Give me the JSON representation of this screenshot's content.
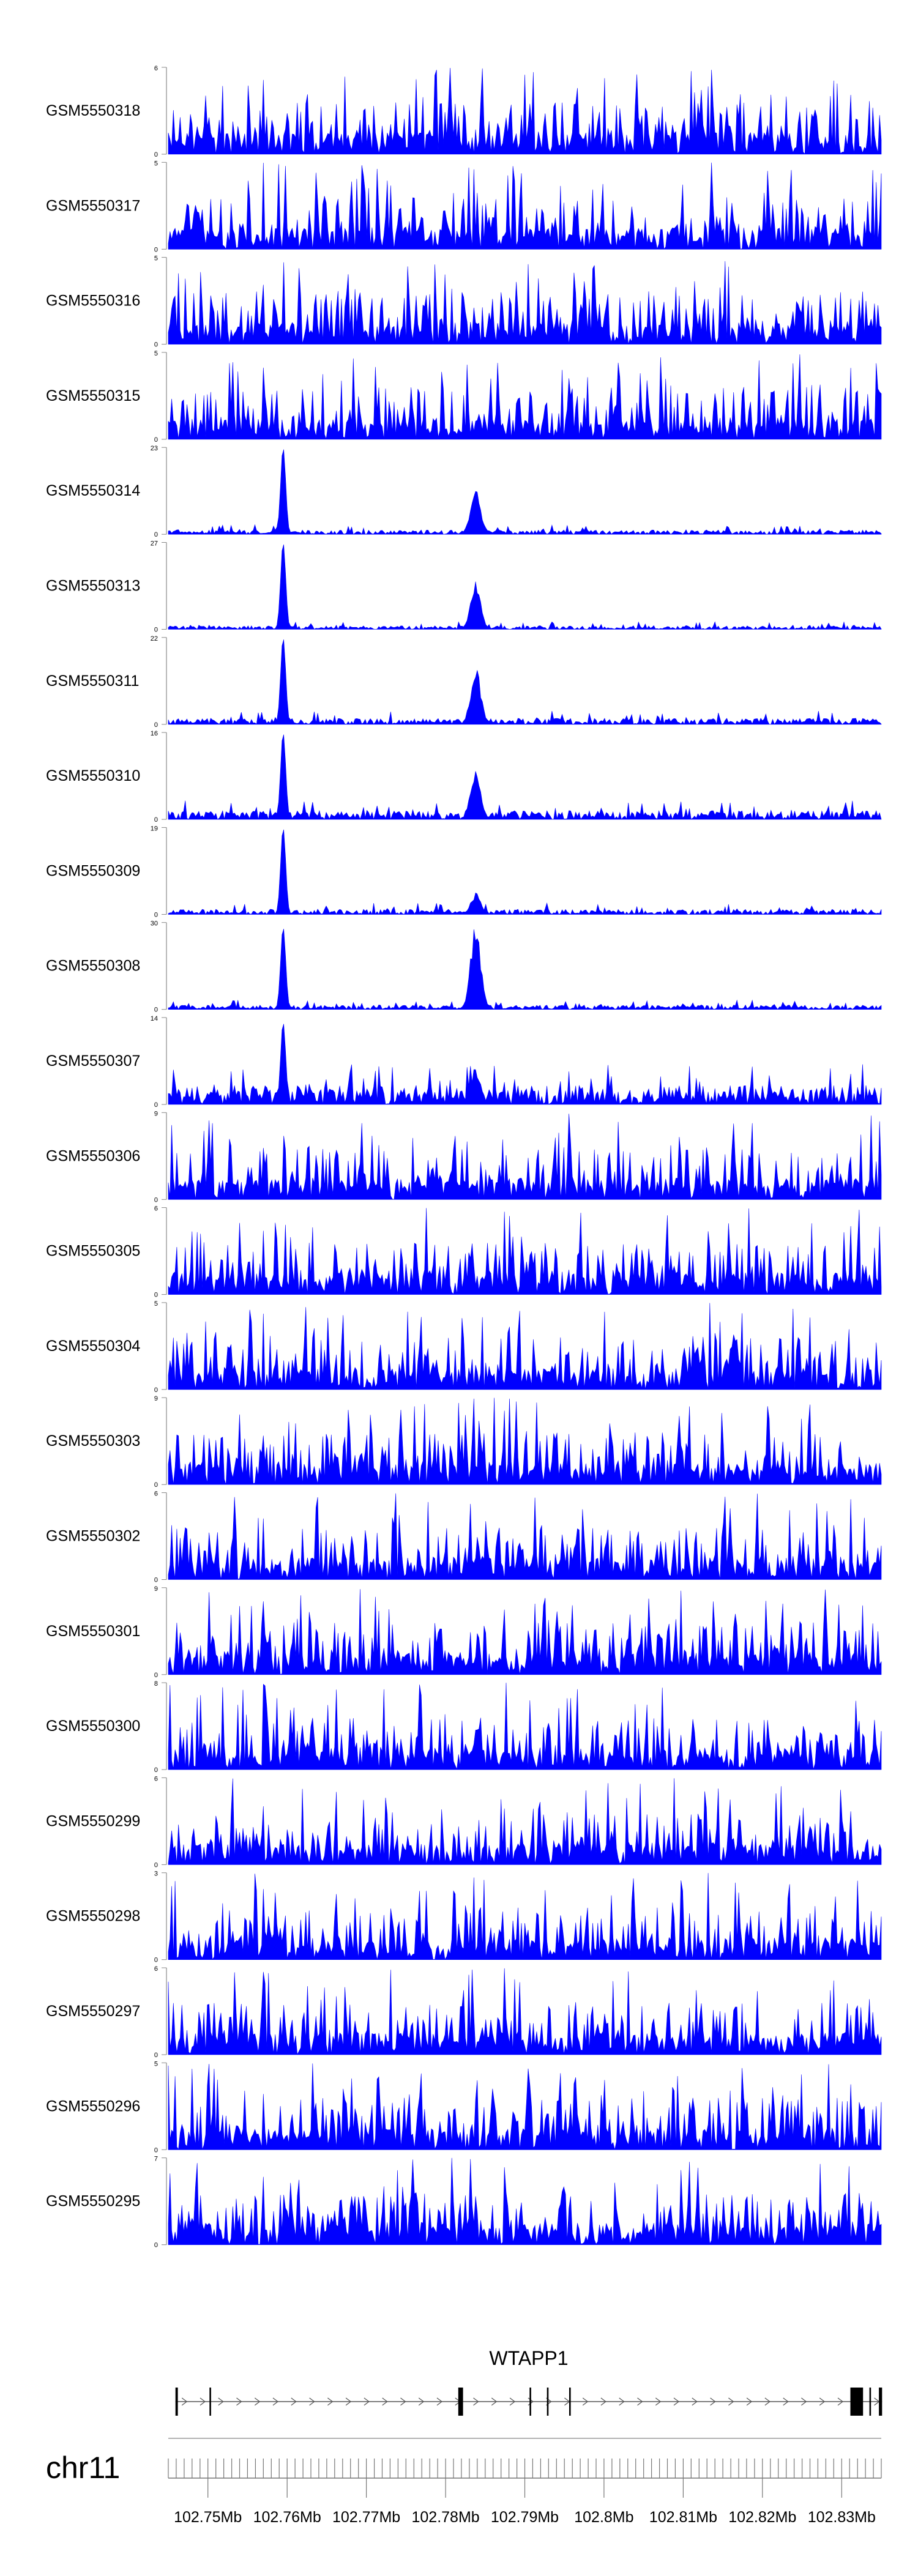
{
  "chart_data": {
    "type": "area",
    "series_color": "#0000ff",
    "tracks": [
      {
        "name": "GSM5550318",
        "ymax": 6,
        "ymin": 0
      },
      {
        "name": "GSM5550317",
        "ymax": 5,
        "ymin": 0
      },
      {
        "name": "GSM5550316",
        "ymax": 5,
        "ymin": 0
      },
      {
        "name": "GSM5550315",
        "ymax": 5,
        "ymin": 0
      },
      {
        "name": "GSM5550314",
        "ymax": 23,
        "ymin": 0
      },
      {
        "name": "GSM5550313",
        "ymax": 27,
        "ymin": 0
      },
      {
        "name": "GSM5550311",
        "ymax": 22,
        "ymin": 0
      },
      {
        "name": "GSM5550310",
        "ymax": 16,
        "ymin": 0
      },
      {
        "name": "GSM5550309",
        "ymax": 19,
        "ymin": 0
      },
      {
        "name": "GSM5550308",
        "ymax": 30,
        "ymin": 0
      },
      {
        "name": "GSM5550307",
        "ymax": 14,
        "ymin": 0
      },
      {
        "name": "GSM5550306",
        "ymax": 9,
        "ymin": 0
      },
      {
        "name": "GSM5550305",
        "ymax": 6,
        "ymin": 0
      },
      {
        "name": "GSM5550304",
        "ymax": 5,
        "ymin": 0
      },
      {
        "name": "GSM5550303",
        "ymax": 9,
        "ymin": 0
      },
      {
        "name": "GSM5550302",
        "ymax": 6,
        "ymin": 0
      },
      {
        "name": "GSM5550301",
        "ymax": 9,
        "ymin": 0
      },
      {
        "name": "GSM5550300",
        "ymax": 8,
        "ymin": 0
      },
      {
        "name": "GSM5550299",
        "ymax": 6,
        "ymin": 0
      },
      {
        "name": "GSM5550298",
        "ymax": 3,
        "ymin": 0
      },
      {
        "name": "GSM5550297",
        "ymax": 6,
        "ymin": 0
      },
      {
        "name": "GSM5550296",
        "ymax": 5,
        "ymin": 0
      },
      {
        "name": "GSM5550295",
        "ymax": 7,
        "ymin": 0
      }
    ],
    "gene": {
      "name": "WTAPP1",
      "start": 102.7459,
      "end": 102.8351,
      "exons": [
        [
          102.7459,
          102.7462
        ],
        [
          102.7502,
          102.7504
        ],
        [
          102.7816,
          102.7822
        ],
        [
          102.7906,
          102.7908
        ],
        [
          102.7928,
          102.793
        ],
        [
          102.7956,
          102.7958
        ],
        [
          102.8311,
          102.8327
        ],
        [
          102.8335,
          102.8337
        ],
        [
          102.8347,
          102.8351
        ]
      ]
    },
    "chromosome": "chr11",
    "x_axis": {
      "unit": "Mb",
      "ticks": [
        102.75,
        102.76,
        102.77,
        102.78,
        102.79,
        102.8,
        102.81,
        102.82,
        102.83
      ],
      "tick_labels": [
        "102.75Mb",
        "102.76Mb",
        "102.77Mb",
        "102.78Mb",
        "102.79Mb",
        "102.8Mb",
        "102.81Mb",
        "102.82Mb",
        "102.83Mb"
      ],
      "range": [
        102.745,
        102.835
      ]
    }
  }
}
